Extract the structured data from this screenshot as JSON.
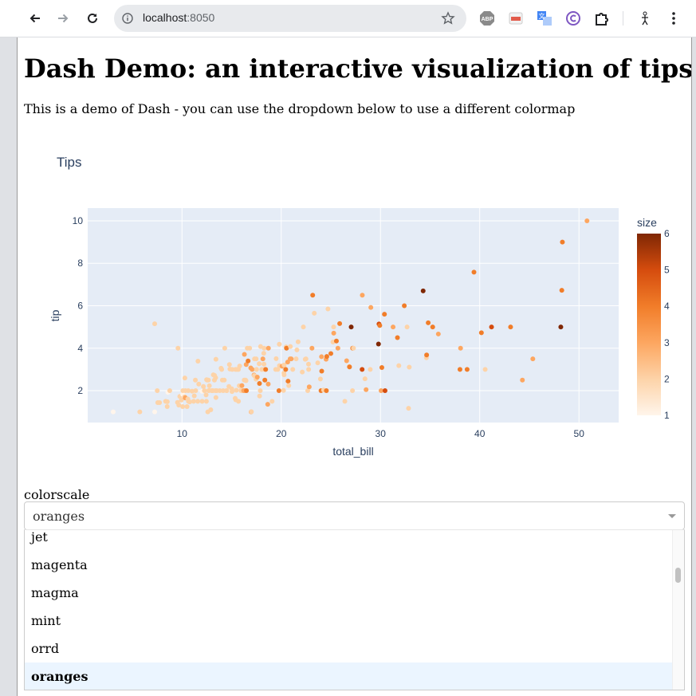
{
  "browser": {
    "url_host": "localhost",
    "url_port": ":8050",
    "extensions": [
      "abp-icon",
      "pdf-icon",
      "translate-icon",
      "copyright-icon",
      "puzzle-icon",
      "figure-icon"
    ]
  },
  "page": {
    "title": "Dash Demo: an interactive visualization of tips data",
    "intro": "This is a demo of Dash - you can use the dropdown below to use a different colormap"
  },
  "chart_data": {
    "type": "scatter",
    "title": "Tips",
    "xlabel": "total_bill",
    "ylabel": "tip",
    "xlim": [
      0.5,
      54
    ],
    "ylim": [
      0.5,
      10.6
    ],
    "xticks": [
      10,
      20,
      30,
      40,
      50
    ],
    "yticks": [
      2,
      4,
      6,
      8,
      10
    ],
    "grid": true,
    "colorbar": {
      "title": "size",
      "range": [
        1,
        6
      ],
      "ticks": [
        1,
        2,
        3,
        4,
        5,
        6
      ],
      "colorscale": "oranges"
    },
    "points": [
      [
        3.07,
        1.0,
        1
      ],
      [
        5.75,
        1.0,
        2
      ],
      [
        7.25,
        1.0,
        1
      ],
      [
        7.25,
        5.15,
        2
      ],
      [
        7.51,
        2.0,
        2
      ],
      [
        7.56,
        1.44,
        2
      ],
      [
        7.74,
        1.44,
        2
      ],
      [
        8.35,
        1.5,
        2
      ],
      [
        8.51,
        1.25,
        2
      ],
      [
        8.52,
        1.48,
        2
      ],
      [
        8.58,
        1.92,
        1
      ],
      [
        8.77,
        2.0,
        2
      ],
      [
        9.55,
        1.45,
        2
      ],
      [
        9.6,
        4.0,
        2
      ],
      [
        9.68,
        1.32,
        2
      ],
      [
        9.78,
        1.73,
        2
      ],
      [
        9.94,
        1.56,
        2
      ],
      [
        10.07,
        1.83,
        1
      ],
      [
        10.07,
        1.25,
        2
      ],
      [
        10.09,
        2.0,
        2
      ],
      [
        10.27,
        1.71,
        2
      ],
      [
        10.29,
        2.6,
        2
      ],
      [
        10.33,
        1.67,
        3
      ],
      [
        10.34,
        1.66,
        3
      ],
      [
        10.34,
        2.0,
        2
      ],
      [
        10.51,
        1.25,
        2
      ],
      [
        10.59,
        1.61,
        2
      ],
      [
        10.63,
        2.0,
        2
      ],
      [
        10.65,
        1.5,
        2
      ],
      [
        10.77,
        1.47,
        2
      ],
      [
        11.02,
        1.98,
        2
      ],
      [
        11.17,
        1.5,
        2
      ],
      [
        11.24,
        1.76,
        2
      ],
      [
        11.35,
        2.5,
        2
      ],
      [
        11.38,
        2.0,
        2
      ],
      [
        11.59,
        1.5,
        2
      ],
      [
        11.61,
        3.39,
        2
      ],
      [
        11.69,
        2.31,
        2
      ],
      [
        12.02,
        1.97,
        1
      ],
      [
        12.03,
        1.5,
        2
      ],
      [
        12.16,
        2.2,
        2
      ],
      [
        12.26,
        2.0,
        2
      ],
      [
        12.43,
        1.8,
        2
      ],
      [
        12.46,
        1.5,
        2
      ],
      [
        12.48,
        2.52,
        2
      ],
      [
        12.54,
        2.5,
        2
      ],
      [
        12.6,
        1.0,
        2
      ],
      [
        12.66,
        2.5,
        2
      ],
      [
        12.69,
        2.0,
        2
      ],
      [
        12.74,
        2.01,
        2
      ],
      [
        12.76,
        2.23,
        2
      ],
      [
        12.9,
        1.1,
        2
      ],
      [
        13.0,
        2.0,
        2
      ],
      [
        13.03,
        2.0,
        2
      ],
      [
        13.13,
        2.0,
        2
      ],
      [
        13.16,
        2.75,
        2
      ],
      [
        13.27,
        2.5,
        2
      ],
      [
        13.28,
        2.72,
        2
      ],
      [
        13.37,
        2.0,
        2
      ],
      [
        13.39,
        2.61,
        2
      ],
      [
        13.42,
        3.48,
        2
      ],
      [
        13.42,
        1.68,
        2
      ],
      [
        13.51,
        2.0,
        2
      ],
      [
        13.81,
        2.0,
        2
      ],
      [
        13.94,
        3.06,
        2
      ],
      [
        14.0,
        3.0,
        2
      ],
      [
        14.07,
        2.5,
        2
      ],
      [
        14.15,
        2.0,
        2
      ],
      [
        14.26,
        2.5,
        2
      ],
      [
        14.31,
        4.0,
        2
      ],
      [
        14.48,
        2.0,
        2
      ],
      [
        14.52,
        2.0,
        2
      ],
      [
        14.73,
        2.2,
        2
      ],
      [
        14.78,
        3.23,
        2
      ],
      [
        14.83,
        3.02,
        2
      ],
      [
        15.01,
        2.09,
        2
      ],
      [
        15.04,
        1.96,
        2
      ],
      [
        15.06,
        3.0,
        2
      ],
      [
        15.36,
        1.64,
        2
      ],
      [
        15.38,
        3.0,
        2
      ],
      [
        15.42,
        1.57,
        2
      ],
      [
        15.48,
        2.02,
        2
      ],
      [
        15.53,
        3.0,
        2
      ],
      [
        15.69,
        1.5,
        2
      ],
      [
        15.69,
        3.0,
        2
      ],
      [
        15.77,
        2.23,
        2
      ],
      [
        15.81,
        3.16,
        2
      ],
      [
        15.95,
        2.0,
        2
      ],
      [
        15.98,
        2.03,
        2
      ],
      [
        16.0,
        2.0,
        2
      ],
      [
        16.04,
        2.24,
        3
      ],
      [
        16.21,
        2.0,
        3
      ],
      [
        16.27,
        2.5,
        2
      ],
      [
        16.29,
        3.71,
        3
      ],
      [
        16.31,
        2.0,
        3
      ],
      [
        16.4,
        2.5,
        2
      ],
      [
        16.45,
        2.47,
        2
      ],
      [
        16.47,
        3.23,
        3
      ],
      [
        16.49,
        2.0,
        4
      ],
      [
        16.58,
        4.0,
        2
      ],
      [
        16.66,
        3.4,
        4
      ],
      [
        16.82,
        4.0,
        2
      ],
      [
        16.93,
        3.07,
        3
      ],
      [
        16.97,
        1.0,
        3
      ],
      [
        16.99,
        1.01,
        2
      ],
      [
        17.07,
        3.0,
        3
      ],
      [
        17.26,
        2.74,
        3
      ],
      [
        17.29,
        2.71,
        2
      ],
      [
        17.31,
        3.5,
        2
      ],
      [
        17.46,
        2.54,
        2
      ],
      [
        17.47,
        3.5,
        2
      ],
      [
        17.51,
        3.0,
        2
      ],
      [
        17.59,
        2.64,
        3
      ],
      [
        17.78,
        3.27,
        2
      ],
      [
        17.81,
        2.34,
        4
      ],
      [
        17.82,
        1.75,
        2
      ],
      [
        17.89,
        2.0,
        2
      ],
      [
        17.92,
        4.08,
        2
      ],
      [
        18.04,
        3.0,
        2
      ],
      [
        18.15,
        3.5,
        3
      ],
      [
        18.24,
        3.76,
        2
      ],
      [
        18.26,
        3.25,
        2
      ],
      [
        18.28,
        4.0,
        2
      ],
      [
        18.29,
        3.0,
        2
      ],
      [
        18.35,
        2.5,
        4
      ],
      [
        18.43,
        3.0,
        4
      ],
      [
        18.64,
        1.36,
        3
      ],
      [
        18.69,
        2.31,
        3
      ],
      [
        18.71,
        4.0,
        3
      ],
      [
        19.08,
        1.5,
        2
      ],
      [
        19.44,
        3.0,
        2
      ],
      [
        19.49,
        3.51,
        2
      ],
      [
        19.65,
        3.0,
        2
      ],
      [
        19.77,
        2.0,
        4
      ],
      [
        19.81,
        4.19,
        2
      ],
      [
        19.82,
        3.18,
        2
      ],
      [
        20.08,
        3.15,
        3
      ],
      [
        20.23,
        2.01,
        2
      ],
      [
        20.27,
        2.83,
        2
      ],
      [
        20.29,
        3.21,
        2
      ],
      [
        20.29,
        2.75,
        2
      ],
      [
        20.45,
        3.0,
        4
      ],
      [
        20.49,
        4.06,
        2
      ],
      [
        20.53,
        4.0,
        4
      ],
      [
        20.65,
        3.35,
        3
      ],
      [
        20.69,
        2.45,
        4
      ],
      [
        20.76,
        2.24,
        2
      ],
      [
        20.9,
        3.5,
        3
      ],
      [
        20.92,
        4.08,
        2
      ],
      [
        21.01,
        3.5,
        3
      ],
      [
        21.16,
        3.0,
        2
      ],
      [
        21.5,
        3.5,
        2
      ],
      [
        21.58,
        3.92,
        2
      ],
      [
        21.7,
        4.3,
        2
      ],
      [
        22.12,
        2.88,
        2
      ],
      [
        22.23,
        5.0,
        2
      ],
      [
        22.42,
        3.48,
        2
      ],
      [
        22.49,
        3.5,
        2
      ],
      [
        22.67,
        2.0,
        2
      ],
      [
        22.75,
        3.25,
        2
      ],
      [
        22.76,
        3.0,
        2
      ],
      [
        22.82,
        2.18,
        3
      ],
      [
        23.1,
        4.0,
        3
      ],
      [
        23.17,
        6.5,
        4
      ],
      [
        23.33,
        5.65,
        2
      ],
      [
        23.68,
        3.31,
        2
      ],
      [
        23.95,
        2.55,
        2
      ],
      [
        24.01,
        2.0,
        4
      ],
      [
        24.06,
        3.6,
        3
      ],
      [
        24.08,
        2.92,
        4
      ],
      [
        24.27,
        2.03,
        2
      ],
      [
        24.52,
        3.48,
        3
      ],
      [
        24.55,
        2.0,
        4
      ],
      [
        24.59,
        3.61,
        4
      ],
      [
        24.71,
        5.85,
        2
      ],
      [
        25.0,
        3.75,
        4
      ],
      [
        25.21,
        4.29,
        2
      ],
      [
        25.28,
        5.0,
        2
      ],
      [
        25.29,
        4.71,
        3
      ],
      [
        25.56,
        4.34,
        4
      ],
      [
        25.71,
        4.0,
        3
      ],
      [
        25.89,
        5.16,
        4
      ],
      [
        26.41,
        1.5,
        2
      ],
      [
        26.59,
        3.41,
        3
      ],
      [
        26.86,
        3.14,
        2
      ],
      [
        26.88,
        3.12,
        4
      ],
      [
        27.05,
        5.0,
        6
      ],
      [
        27.18,
        2.0,
        2
      ],
      [
        27.2,
        4.0,
        4
      ],
      [
        27.28,
        4.0,
        2
      ],
      [
        28.15,
        3.0,
        5
      ],
      [
        28.17,
        6.5,
        3
      ],
      [
        28.44,
        2.56,
        2
      ],
      [
        28.55,
        2.05,
        3
      ],
      [
        28.97,
        3.0,
        2
      ],
      [
        29.03,
        5.92,
        3
      ],
      [
        29.8,
        4.2,
        6
      ],
      [
        29.85,
        5.14,
        5
      ],
      [
        29.93,
        5.07,
        4
      ],
      [
        30.06,
        2.0,
        3
      ],
      [
        30.14,
        3.09,
        4
      ],
      [
        30.4,
        5.6,
        4
      ],
      [
        30.46,
        2.0,
        5
      ],
      [
        31.27,
        5.0,
        3
      ],
      [
        31.71,
        4.5,
        4
      ],
      [
        31.85,
        3.18,
        2
      ],
      [
        32.4,
        6.0,
        4
      ],
      [
        32.68,
        5.0,
        2
      ],
      [
        32.83,
        1.17,
        2
      ],
      [
        32.9,
        3.11,
        2
      ],
      [
        34.3,
        6.7,
        6
      ],
      [
        34.63,
        3.55,
        2
      ],
      [
        34.65,
        3.68,
        4
      ],
      [
        34.81,
        5.2,
        4
      ],
      [
        35.26,
        5.0,
        4
      ],
      [
        35.83,
        4.67,
        3
      ],
      [
        38.01,
        3.0,
        4
      ],
      [
        38.07,
        4.0,
        3
      ],
      [
        38.73,
        3.0,
        4
      ],
      [
        39.42,
        7.58,
        4
      ],
      [
        40.17,
        4.73,
        4
      ],
      [
        40.55,
        3.0,
        2
      ],
      [
        41.19,
        5.0,
        5
      ],
      [
        43.11,
        5.0,
        4
      ],
      [
        44.3,
        2.5,
        3
      ],
      [
        45.35,
        3.5,
        3
      ],
      [
        48.17,
        5.0,
        6
      ],
      [
        48.27,
        6.73,
        4
      ],
      [
        48.33,
        9.0,
        4
      ],
      [
        50.81,
        10.0,
        3
      ]
    ]
  },
  "dropdown": {
    "label": "colorscale",
    "value": "oranges",
    "options": [
      "jet",
      "magenta",
      "magma",
      "mint",
      "orrd",
      "oranges"
    ]
  }
}
